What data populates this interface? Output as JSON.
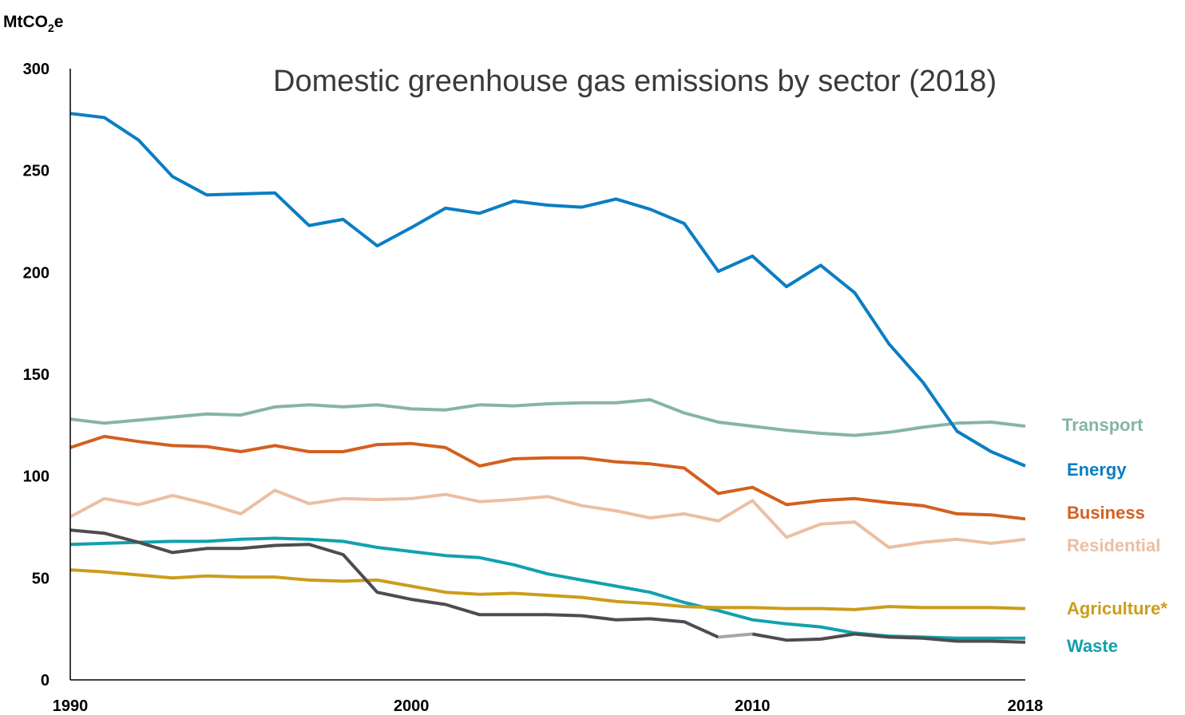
{
  "chart_data": {
    "type": "line",
    "title": "Domestic greenhouse gas emissions by sector (2018)",
    "ylabel_main": "MtCO",
    "ylabel_sub": "2",
    "ylabel_end": "e",
    "xlim": [
      1990,
      2018
    ],
    "ylim": [
      0,
      300
    ],
    "yticks": [
      "0",
      "50",
      "100",
      "150",
      "200",
      "250",
      "300"
    ],
    "xticks": [
      {
        "value": 1990,
        "label": "1990"
      },
      {
        "value": 2000,
        "label": "2000"
      },
      {
        "value": 2010,
        "label": "2010"
      },
      {
        "value": 2018,
        "label": "2018"
      }
    ],
    "grid": false,
    "x": [
      1990,
      1991,
      1992,
      1993,
      1994,
      1995,
      1996,
      1997,
      1998,
      1999,
      2000,
      2001,
      2002,
      2003,
      2004,
      2005,
      2006,
      2007,
      2008,
      2009,
      2010,
      2011,
      2012,
      2013,
      2014,
      2015,
      2016,
      2017,
      2018
    ],
    "series": [
      {
        "name": "Transport",
        "color": "#86b5a3",
        "values": [
          128,
          126,
          127.5,
          129,
          130.5,
          130,
          134,
          135,
          134,
          135,
          133,
          132.5,
          135,
          134.5,
          135.5,
          136,
          136,
          137.5,
          131,
          126.5,
          124.5,
          122.5,
          121,
          120,
          121.5,
          124,
          126,
          126.5,
          124.5
        ]
      },
      {
        "name": "Energy",
        "color": "#0a7ec3",
        "values": [
          278,
          276,
          265,
          247,
          238,
          238.5,
          239,
          223,
          226,
          213,
          222,
          231.5,
          229,
          235,
          233,
          232,
          236,
          231,
          224,
          200.5,
          208,
          193,
          203.5,
          190,
          165,
          146,
          122,
          112,
          105
        ]
      },
      {
        "name": "Business",
        "color": "#d3601f",
        "values": [
          114,
          119.5,
          117,
          115,
          114.5,
          112,
          115,
          112,
          112,
          115.5,
          116,
          114,
          105,
          108.5,
          109,
          109,
          107,
          106,
          104,
          91.5,
          94.5,
          86,
          88,
          89,
          87,
          85.5,
          81.5,
          81,
          79
        ]
      },
      {
        "name": "Residential",
        "color": "#ebbfa3",
        "values": [
          80,
          89,
          86,
          90.5,
          86.5,
          81.5,
          93,
          86.5,
          89,
          88.5,
          89,
          91,
          87.5,
          88.5,
          90,
          85.5,
          83,
          79.5,
          81.5,
          78,
          88,
          70,
          76.5,
          77.5,
          65,
          67.5,
          69,
          67,
          69
        ]
      },
      {
        "name": "Agriculture*",
        "color": "#cc9d1a",
        "values": [
          54,
          53,
          51.5,
          50,
          51,
          50.5,
          50.5,
          49,
          48.5,
          49,
          46,
          43,
          42,
          42.5,
          41.5,
          40.5,
          38.5,
          37.5,
          36,
          35.5,
          35.5,
          35,
          35,
          34.5,
          36,
          35.5,
          35.5,
          35.5,
          35
        ]
      },
      {
        "name": "Waste",
        "color": "#10a2ae",
        "values": [
          66.5,
          67,
          67.5,
          68,
          68,
          69,
          69.5,
          69,
          68,
          65,
          63,
          61,
          60,
          56.5,
          52,
          49,
          46,
          43,
          38,
          34,
          29.5,
          27.5,
          26,
          23,
          21.5,
          21,
          20.5,
          20.5,
          20.5
        ]
      }
    ],
    "extra_series": [
      {
        "color": "#4d4d4f",
        "values": [
          73.5,
          72,
          67.5,
          62.5,
          64.5,
          64.5,
          66,
          66.5,
          61.5,
          43,
          39.5,
          37,
          32,
          32,
          32,
          31.5,
          29.5,
          30,
          28.5,
          21,
          null,
          null,
          null,
          null,
          null,
          null,
          null,
          null,
          null
        ]
      },
      {
        "color": "#a6a6a6",
        "values": [
          null,
          null,
          null,
          null,
          null,
          null,
          null,
          null,
          null,
          null,
          null,
          null,
          null,
          null,
          null,
          null,
          null,
          null,
          null,
          21,
          22.5,
          null,
          null,
          null,
          null,
          null,
          null,
          null,
          null
        ]
      },
      {
        "color": "#4d4d4f",
        "values": [
          null,
          null,
          null,
          null,
          null,
          null,
          null,
          null,
          null,
          null,
          null,
          null,
          null,
          null,
          null,
          null,
          null,
          null,
          null,
          null,
          22.5,
          19.5,
          20,
          22.5,
          21,
          20.5,
          19,
          19,
          18.5
        ]
      }
    ]
  }
}
